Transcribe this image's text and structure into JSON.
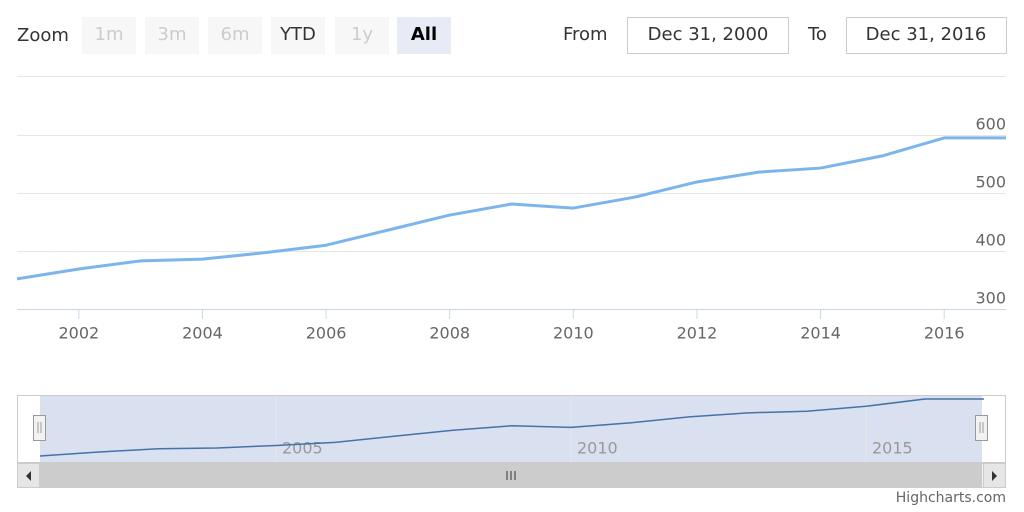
{
  "zoom": {
    "label": "Zoom",
    "buttons": [
      "1m",
      "3m",
      "6m",
      "YTD",
      "1y",
      "All"
    ]
  },
  "range": {
    "from_label": "From",
    "from": "Dec 31, 2000",
    "to_label": "To",
    "to": "Dec 31, 2016"
  },
  "chart_data": {
    "type": "line",
    "x": [
      2001,
      2002,
      2003,
      2004,
      2005,
      2006,
      2007,
      2008,
      2009,
      2010,
      2011,
      2012,
      2013,
      2014,
      2015,
      2016,
      2017
    ],
    "values": [
      352,
      369,
      383,
      386,
      397,
      410,
      436,
      462,
      481,
      474,
      493,
      519,
      536,
      543,
      564,
      595,
      595
    ],
    "color": "#7cb5ec",
    "xlim": [
      2001,
      2017
    ],
    "xticks": [
      2002,
      2004,
      2006,
      2008,
      2010,
      2012,
      2014,
      2016
    ],
    "ylim": [
      300,
      700
    ],
    "yticks": [
      300,
      400,
      500,
      600
    ],
    "grid": true,
    "navigator": {
      "xticks": [
        2005,
        2010,
        2015
      ]
    }
  },
  "credit": "Highcharts.com"
}
